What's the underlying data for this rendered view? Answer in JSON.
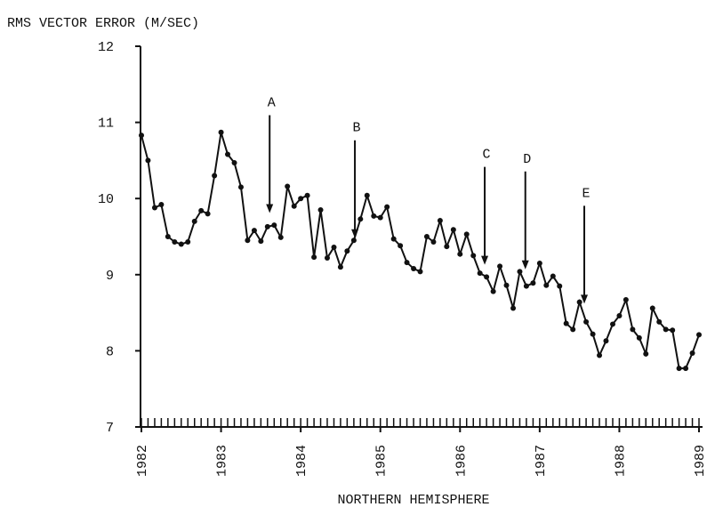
{
  "chart_data": {
    "type": "line",
    "y_label": "RMS VECTOR ERROR (M/SEC)",
    "x_label": "NORTHERN HEMISPHERE",
    "x": [
      1982,
      1982.083,
      1982.167,
      1982.25,
      1982.333,
      1982.417,
      1982.5,
      1982.583,
      1982.667,
      1982.75,
      1982.833,
      1982.917,
      1983,
      1983.083,
      1983.167,
      1983.25,
      1983.333,
      1983.417,
      1983.5,
      1983.583,
      1983.667,
      1983.75,
      1983.833,
      1983.917,
      1984,
      1984.083,
      1984.167,
      1984.25,
      1984.333,
      1984.417,
      1984.5,
      1984.583,
      1984.667,
      1984.75,
      1984.833,
      1984.917,
      1985,
      1985.083,
      1985.167,
      1985.25,
      1985.333,
      1985.417,
      1985.5,
      1985.583,
      1985.667,
      1985.75,
      1985.833,
      1985.917,
      1986,
      1986.083,
      1986.167,
      1986.25,
      1986.333,
      1986.417,
      1986.5,
      1986.583,
      1986.667,
      1986.75,
      1986.833,
      1986.917,
      1987,
      1987.083,
      1987.167,
      1987.25,
      1987.333,
      1987.417,
      1987.5,
      1987.583,
      1987.667,
      1987.75,
      1987.833,
      1987.917,
      1988,
      1988.083,
      1988.167,
      1988.25,
      1988.333,
      1988.417,
      1988.5,
      1988.583,
      1988.667,
      1988.75,
      1988.833,
      1988.917,
      1989
    ],
    "series": [
      {
        "color": "#111111",
        "values": [
          10.83,
          10.5,
          9.88,
          9.92,
          9.5,
          9.43,
          9.4,
          9.43,
          9.7,
          9.84,
          9.8,
          10.3,
          10.87,
          10.58,
          10.47,
          10.15,
          9.45,
          9.58,
          9.44,
          9.63,
          9.65,
          9.49,
          10.16,
          9.9,
          10.0,
          10.04,
          9.23,
          9.85,
          9.22,
          9.36,
          9.1,
          9.31,
          9.45,
          9.73,
          10.04,
          9.77,
          9.75,
          9.89,
          9.47,
          9.38,
          9.16,
          9.08,
          9.04,
          9.5,
          9.43,
          9.71,
          9.37,
          9.59,
          9.27,
          9.53,
          9.25,
          9.02,
          8.97,
          8.78,
          9.11,
          8.86,
          8.56,
          9.04,
          8.85,
          8.89,
          9.15,
          8.86,
          8.98,
          8.85,
          8.36,
          8.28,
          8.64,
          8.38,
          8.22,
          7.94,
          8.13,
          8.35,
          8.46,
          8.67,
          8.28,
          8.17,
          7.96,
          8.56,
          8.38,
          8.28,
          8.27,
          7.77,
          7.77,
          7.97,
          8.21
        ]
      }
    ],
    "xlim": [
      1982,
      1989
    ],
    "xticks": [
      1982,
      1983,
      1984,
      1985,
      1986,
      1987,
      1988,
      1989
    ],
    "ylim": [
      7,
      12
    ],
    "yticks": [
      7,
      8,
      9,
      10,
      11,
      12
    ],
    "annotations": [
      {
        "label": "A",
        "x": 1983.61,
        "y": 9.81
      },
      {
        "label": "B",
        "x": 1984.68,
        "y": 9.48
      },
      {
        "label": "C",
        "x": 1986.31,
        "y": 9.13
      },
      {
        "label": "D",
        "x": 1986.82,
        "y": 9.07
      },
      {
        "label": "E",
        "x": 1987.56,
        "y": 8.62
      }
    ]
  }
}
